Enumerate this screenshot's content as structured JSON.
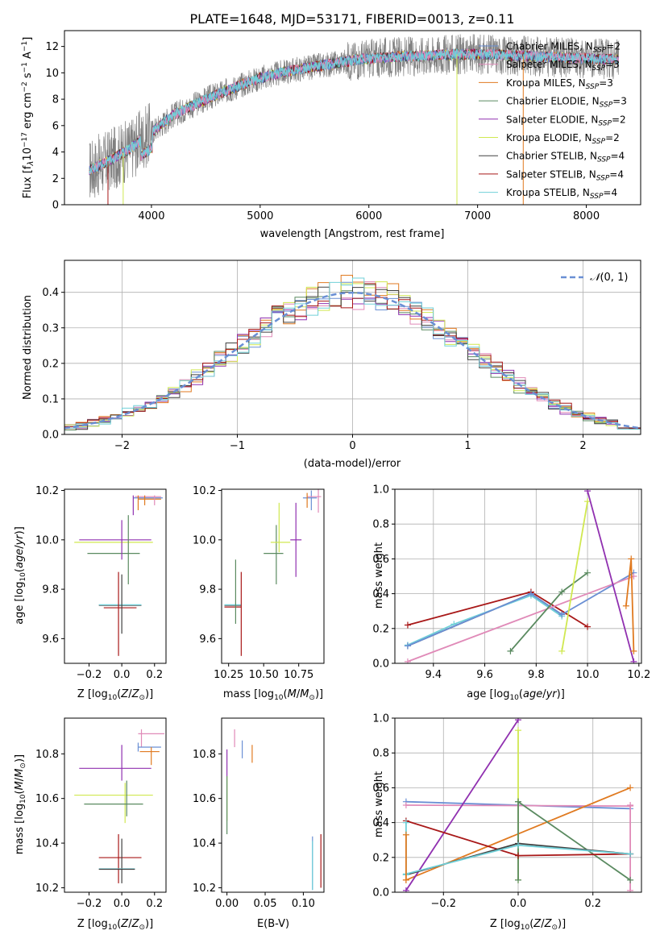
{
  "colors": {
    "chabrier_miles": "#6a8fd4",
    "salpeter_miles": "#e08ab8",
    "kroupa_miles": "#e07a20",
    "chabrier_elodie": "#5a8a60",
    "salpeter_elodie": "#9030b0",
    "kroupa_elodie": "#d0e850",
    "chabrier_stelib": "#404040",
    "salpeter_stelib": "#a81818",
    "kroupa_stelib": "#70d0d8",
    "observed": "#808080"
  },
  "chart_data": [
    {
      "id": "spectrum",
      "type": "line",
      "title": "PLATE=1648, MJD=53171, FIBERID=0013, z=0.11",
      "xlabel": "wavelength [Angstrom, rest frame]",
      "ylabel": "Flux [f_λ 10^-17 erg cm^-2 s^-1 A^-1]",
      "xlim": [
        3200,
        8500
      ],
      "ylim": [
        0,
        13.2
      ],
      "xticks": [
        4000,
        5000,
        6000,
        7000,
        8000
      ],
      "yticks": [
        0,
        2,
        4,
        6,
        8,
        10,
        12
      ],
      "legend": "right",
      "legend_entries": [
        {
          "base": "Chabrier MILES, N",
          "sub": "SSP",
          "tail": "=2",
          "color_key": "chabrier_miles"
        },
        {
          "base": "Salpeter MILES, N",
          "sub": "SSP",
          "tail": "=3",
          "color_key": "salpeter_miles"
        },
        {
          "base": "Kroupa MILES, N",
          "sub": "SSP",
          "tail": "=3",
          "color_key": "kroupa_miles"
        },
        {
          "base": "Chabrier ELODIE, N",
          "sub": "SSP",
          "tail": "=3",
          "color_key": "chabrier_elodie"
        },
        {
          "base": "Salpeter ELODIE, N",
          "sub": "SSP",
          "tail": "=2",
          "color_key": "salpeter_elodie"
        },
        {
          "base": "Kroupa ELODIE, N",
          "sub": "SSP",
          "tail": "=2",
          "color_key": "kroupa_elodie"
        },
        {
          "base": "Chabrier STELIB, N",
          "sub": "SSP",
          "tail": "=4",
          "color_key": "chabrier_stelib"
        },
        {
          "base": "Salpeter STELIB, N",
          "sub": "SSP",
          "tail": "=4",
          "color_key": "salpeter_stelib"
        },
        {
          "base": "Kroupa STELIB, N",
          "sub": "SSP",
          "tail": "=4",
          "color_key": "kroupa_stelib"
        }
      ],
      "continuum": {
        "x": [
          3400,
          3600,
          3800,
          4000,
          4200,
          4500,
          4800,
          5000,
          5300,
          5600,
          5900,
          6200,
          6500,
          6800,
          7100,
          7400,
          7700,
          8000,
          8300
        ],
        "y": [
          2.5,
          3.3,
          4.2,
          5.5,
          6.8,
          8.0,
          9.0,
          9.6,
          10.2,
          10.6,
          11.0,
          11.2,
          11.3,
          11.4,
          11.4,
          11.3,
          11.2,
          11.1,
          11.0
        ]
      },
      "x_range": [
        3430,
        8300
      ]
    },
    {
      "id": "residuals",
      "type": "histogram",
      "xlabel": "(data-model)/error",
      "ylabel": "Normed distribution",
      "xlim": [
        -2.5,
        2.5
      ],
      "ylim": [
        0,
        0.49
      ],
      "xticks": [
        -2,
        -1,
        0,
        1,
        2
      ],
      "yticks": [
        0.0,
        0.1,
        0.2,
        0.3,
        0.4
      ],
      "grid": true,
      "legend": "top-right",
      "legend_label": "N(0,1)",
      "bin_width": 0.1
    },
    {
      "id": "age_vs_Z",
      "type": "errorbar",
      "xlabel": "Z [log10(Z/Zsun)]",
      "ylabel": "age [log10(age/yr)]",
      "xlim": [
        -0.35,
        0.27
      ],
      "ylim": [
        9.5,
        10.205
      ],
      "xticks": [
        -0.2,
        0.0,
        0.2
      ],
      "yticks": [
        9.6,
        9.8,
        10.0,
        10.2
      ],
      "points": [
        {
          "model": "salpeter_elodie",
          "x": -0.04,
          "xerr": 0.22,
          "y": 10.0,
          "yerr": 0.0
        },
        {
          "model": "kroupa_elodie",
          "x": -0.05,
          "xerr": 0.24,
          "y": 9.99,
          "yerr": 0.0
        },
        {
          "model": "chabrier_elodie",
          "x": -0.05,
          "xerr": 0.16,
          "y": 9.945,
          "yerr": 0.0
        },
        {
          "model": "chabrier_elodie",
          "x": 0.04,
          "xerr": 0.0,
          "y": 9.96,
          "yerr": 0.14
        },
        {
          "model": "salpeter_elodie",
          "x": 0.0,
          "xerr": 0.0,
          "y": 10.0,
          "yerr": 0.08
        },
        {
          "model": "chabrier_stelib",
          "x": -0.01,
          "xerr": 0.13,
          "y": 9.735,
          "yerr": 0.0
        },
        {
          "model": "kroupa_stelib",
          "x": -0.01,
          "xerr": 0.13,
          "y": 9.737,
          "yerr": 0.0
        },
        {
          "model": "salpeter_stelib",
          "x": -0.01,
          "xerr": 0.1,
          "y": 9.725,
          "yerr": 0.0
        },
        {
          "model": "salpeter_stelib",
          "x": -0.02,
          "xerr": 0.0,
          "y": 9.7,
          "yerr": 0.17
        },
        {
          "model": "chabrier_stelib",
          "x": 0.0,
          "xerr": 0.0,
          "y": 9.74,
          "yerr": 0.12
        },
        {
          "model": "chabrier_miles",
          "x": 0.16,
          "xerr": 0.09,
          "y": 10.17,
          "yerr": 0.0
        },
        {
          "model": "salpeter_miles",
          "x": 0.16,
          "xerr": 0.08,
          "y": 10.175,
          "yerr": 0.0
        },
        {
          "model": "kroupa_miles",
          "x": 0.17,
          "xerr": 0.07,
          "y": 10.165,
          "yerr": 0.0
        },
        {
          "model": "kroupa_miles",
          "x": 0.1,
          "xerr": 0.0,
          "y": 10.15,
          "yerr": 0.03
        },
        {
          "model": "salpeter_elodie",
          "x": 0.07,
          "xerr": 0.0,
          "y": 10.14,
          "yerr": 0.04
        },
        {
          "model": "kroupa_miles",
          "x": 0.14,
          "xerr": 0.0,
          "y": 10.16,
          "yerr": 0.02
        },
        {
          "model": "salpeter_miles",
          "x": 0.2,
          "xerr": 0.0,
          "y": 10.16,
          "yerr": 0.02
        }
      ]
    },
    {
      "id": "age_vs_mass",
      "type": "errorbar",
      "xlabel": "mass [log10(M/Msun)]",
      "ylabel": "",
      "xlim": [
        10.2,
        10.93
      ],
      "ylim": [
        9.5,
        10.205
      ],
      "xticks": [
        10.25,
        10.5,
        10.75
      ],
      "xtick_labels": [
        "10.25",
        "10.50",
        "10.75"
      ],
      "yticks": [
        9.6,
        9.8,
        10.0,
        10.2
      ],
      "points": [
        {
          "model": "chabrier_stelib",
          "x": 10.28,
          "xerr": 0.06,
          "y": 9.735,
          "yerr": 0.0
        },
        {
          "model": "kroupa_stelib",
          "x": 10.28,
          "xerr": 0.06,
          "y": 9.737,
          "yerr": 0.0
        },
        {
          "model": "salpeter_stelib",
          "x": 10.28,
          "xerr": 0.06,
          "y": 9.728,
          "yerr": 0.0
        },
        {
          "model": "chabrier_elodie",
          "x": 10.3,
          "xerr": 0.0,
          "y": 9.79,
          "yerr": 0.13
        },
        {
          "model": "salpeter_stelib",
          "x": 10.34,
          "xerr": 0.0,
          "y": 9.7,
          "yerr": 0.17
        },
        {
          "model": "chabrier_elodie",
          "x": 10.57,
          "xerr": 0.07,
          "y": 9.945,
          "yerr": 0.0
        },
        {
          "model": "chabrier_elodie",
          "x": 10.59,
          "xerr": 0.0,
          "y": 9.94,
          "yerr": 0.12
        },
        {
          "model": "kroupa_elodie",
          "x": 10.62,
          "xerr": 0.07,
          "y": 9.99,
          "yerr": 0.0
        },
        {
          "model": "kroupa_elodie",
          "x": 10.61,
          "xerr": 0.0,
          "y": 10.05,
          "yerr": 0.1
        },
        {
          "model": "salpeter_elodie",
          "x": 10.73,
          "xerr": 0.04,
          "y": 10.0,
          "yerr": 0.0
        },
        {
          "model": "salpeter_elodie",
          "x": 10.73,
          "xerr": 0.0,
          "y": 10.0,
          "yerr": 0.15
        },
        {
          "model": "chabrier_miles",
          "x": 10.83,
          "xerr": 0.05,
          "y": 10.17,
          "yerr": 0.0
        },
        {
          "model": "chabrier_miles",
          "x": 10.84,
          "xerr": 0.0,
          "y": 10.16,
          "yerr": 0.04
        },
        {
          "model": "salpeter_miles",
          "x": 10.86,
          "xerr": 0.05,
          "y": 10.175,
          "yerr": 0.0
        },
        {
          "model": "salpeter_miles",
          "x": 10.89,
          "xerr": 0.0,
          "y": 10.16,
          "yerr": 0.05
        },
        {
          "model": "kroupa_miles",
          "x": 10.81,
          "xerr": 0.0,
          "y": 10.16,
          "yerr": 0.03
        }
      ]
    },
    {
      "id": "weight_vs_age",
      "type": "line",
      "xlabel": "age [log10(age/yr)]",
      "ylabel": "mass weight",
      "xlim": [
        9.25,
        10.21
      ],
      "ylim": [
        0.0,
        1.0
      ],
      "xticks": [
        9.4,
        9.6,
        9.8,
        10.0,
        10.2
      ],
      "yticks": [
        0.0,
        0.2,
        0.4,
        0.6,
        0.8,
        1.0
      ],
      "grid": true,
      "series": [
        {
          "model": "salpeter_stelib",
          "x": [
            9.3,
            9.78,
            10.0
          ],
          "y": [
            0.22,
            0.41,
            0.21
          ]
        },
        {
          "model": "chabrier_stelib",
          "x": [
            9.3,
            9.78,
            9.9
          ],
          "y": [
            0.1,
            0.4,
            0.28
          ]
        },
        {
          "model": "kroupa_stelib",
          "x": [
            9.3,
            9.48,
            9.78,
            9.9
          ],
          "y": [
            0.105,
            0.225,
            0.39,
            0.27
          ]
        },
        {
          "model": "chabrier_miles",
          "x": [
            9.3,
            9.78,
            9.9,
            10.18
          ],
          "y": [
            0.1,
            0.4,
            0.28,
            0.52
          ]
        },
        {
          "model": "salpeter_miles",
          "x": [
            9.3,
            10.18
          ],
          "y": [
            0.01,
            0.5
          ]
        },
        {
          "model": "chabrier_elodie",
          "x": [
            9.7,
            9.9,
            10.0
          ],
          "y": [
            0.07,
            0.41,
            0.52
          ]
        },
        {
          "model": "kroupa_elodie",
          "x": [
            9.9,
            10.0
          ],
          "y": [
            0.07,
            0.93
          ]
        },
        {
          "model": "salpeter_elodie",
          "x": [
            10.0,
            10.18
          ],
          "y": [
            0.99,
            0.01
          ]
        },
        {
          "model": "kroupa_miles",
          "x": [
            10.15,
            10.17,
            10.18
          ],
          "y": [
            0.33,
            0.6,
            0.07
          ]
        }
      ]
    },
    {
      "id": "mass_vs_Z",
      "type": "errorbar",
      "xlabel": "Z [log10(Z/Zsun)]",
      "ylabel": "mass [log10(M/Msun)]",
      "xlim": [
        -0.35,
        0.27
      ],
      "ylim": [
        10.18,
        10.96
      ],
      "xticks": [
        -0.2,
        0.0,
        0.2
      ],
      "yticks": [
        10.2,
        10.4,
        10.6,
        10.8
      ],
      "points": [
        {
          "model": "salpeter_miles",
          "x": 0.18,
          "xerr": 0.08,
          "y": 10.89,
          "yerr": 0.0
        },
        {
          "model": "salpeter_miles",
          "x": 0.12,
          "xerr": 0.0,
          "y": 10.87,
          "yerr": 0.04
        },
        {
          "model": "chabrier_miles",
          "x": 0.17,
          "xerr": 0.07,
          "y": 10.83,
          "yerr": 0.0
        },
        {
          "model": "chabrier_miles",
          "x": 0.1,
          "xerr": 0.0,
          "y": 10.83,
          "yerr": 0.02
        },
        {
          "model": "kroupa_miles",
          "x": 0.17,
          "xerr": 0.06,
          "y": 10.81,
          "yerr": 0.0
        },
        {
          "model": "kroupa_miles",
          "x": 0.18,
          "xerr": 0.0,
          "y": 10.79,
          "yerr": 0.04
        },
        {
          "model": "salpeter_elodie",
          "x": -0.04,
          "xerr": 0.22,
          "y": 10.735,
          "yerr": 0.0
        },
        {
          "model": "salpeter_elodie",
          "x": 0.0,
          "xerr": 0.0,
          "y": 10.76,
          "yerr": 0.08
        },
        {
          "model": "kroupa_elodie",
          "x": -0.05,
          "xerr": 0.24,
          "y": 10.615,
          "yerr": 0.0
        },
        {
          "model": "kroupa_elodie",
          "x": 0.02,
          "xerr": 0.0,
          "y": 10.58,
          "yerr": 0.09
        },
        {
          "model": "chabrier_elodie",
          "x": -0.05,
          "xerr": 0.18,
          "y": 10.575,
          "yerr": 0.0
        },
        {
          "model": "chabrier_elodie",
          "x": 0.03,
          "xerr": 0.0,
          "y": 10.6,
          "yerr": 0.08
        },
        {
          "model": "salpeter_stelib",
          "x": -0.01,
          "xerr": 0.13,
          "y": 10.335,
          "yerr": 0.0
        },
        {
          "model": "salpeter_stelib",
          "x": -0.02,
          "xerr": 0.0,
          "y": 10.33,
          "yerr": 0.11
        },
        {
          "model": "chabrier_stelib",
          "x": 0.0,
          "xerr": 0.0,
          "y": 10.32,
          "yerr": 0.1
        },
        {
          "model": "kroupa_stelib",
          "x": -0.03,
          "xerr": 0.11,
          "y": 10.285,
          "yerr": 0.0
        },
        {
          "model": "chabrier_stelib",
          "x": -0.03,
          "xerr": 0.11,
          "y": 10.283,
          "yerr": 0.0
        }
      ]
    },
    {
      "id": "mass_vs_ebv",
      "type": "errorbar",
      "xlabel": "E(B-V)",
      "ylabel": "",
      "xlim": [
        -0.007,
        0.127
      ],
      "ylim": [
        10.18,
        10.96
      ],
      "xticks": [
        0.0,
        0.05,
        0.1
      ],
      "xtick_labels": [
        "0.00",
        "0.05",
        "0.10"
      ],
      "yticks": [
        10.2,
        10.4,
        10.6,
        10.8
      ],
      "points": [
        {
          "model": "salpeter_miles",
          "x": 0.01,
          "xerr": 0.0,
          "y": 10.87,
          "yerr": 0.04
        },
        {
          "model": "chabrier_miles",
          "x": 0.02,
          "xerr": 0.0,
          "y": 10.82,
          "yerr": 0.04
        },
        {
          "model": "kroupa_miles",
          "x": 0.033,
          "xerr": 0.0,
          "y": 10.8,
          "yerr": 0.04
        },
        {
          "model": "salpeter_elodie",
          "x": 0.0,
          "xerr": 0.0,
          "y": 10.76,
          "yerr": 0.06
        },
        {
          "model": "kroupa_elodie",
          "x": 0.0,
          "xerr": 0.0,
          "y": 10.6,
          "yerr": 0.1
        },
        {
          "model": "chabrier_elodie",
          "x": 0.0,
          "xerr": 0.0,
          "y": 10.57,
          "yerr": 0.13
        },
        {
          "model": "chabrier_miles",
          "x": 0.112,
          "xerr": 0.0,
          "y": 10.31,
          "yerr": 0.12
        },
        {
          "model": "kroupa_stelib",
          "x": 0.112,
          "xerr": 0.0,
          "y": 10.3,
          "yerr": 0.11
        },
        {
          "model": "salpeter_stelib",
          "x": 0.123,
          "xerr": 0.0,
          "y": 10.32,
          "yerr": 0.12
        }
      ]
    },
    {
      "id": "weight_vs_Z",
      "type": "line",
      "xlabel": "Z [log10(Z/Zsun)]",
      "ylabel": "mass weight",
      "xlim": [
        -0.33,
        0.33
      ],
      "ylim": [
        0.0,
        1.0
      ],
      "xticks": [
        -0.2,
        0.0,
        0.2
      ],
      "yticks": [
        0.0,
        0.2,
        0.4,
        0.6,
        0.8,
        1.0
      ],
      "grid": true,
      "series": [
        {
          "model": "chabrier_miles",
          "x": [
            -0.3,
            0.3
          ],
          "y": [
            0.52,
            0.48
          ]
        },
        {
          "model": "salpeter_miles",
          "x": [
            -0.3,
            0.3
          ],
          "y": [
            0.5,
            0.495
          ]
        },
        {
          "model": "salpeter_miles",
          "x": [
            0.3,
            0.3
          ],
          "y": [
            0.5,
            0.01
          ]
        },
        {
          "model": "kroupa_miles",
          "x": [
            -0.3,
            0.3
          ],
          "y": [
            0.07,
            0.6
          ]
        },
        {
          "model": "salpeter_elodie",
          "x": [
            -0.3,
            0.0
          ],
          "y": [
            0.01,
            0.99
          ]
        },
        {
          "model": "kroupa_elodie",
          "x": [
            0.0,
            0.0
          ],
          "y": [
            0.07,
            0.93
          ]
        },
        {
          "model": "chabrier_elodie",
          "x": [
            0.0,
            0.3
          ],
          "y": [
            0.52,
            0.07
          ]
        },
        {
          "model": "chabrier_elodie",
          "x": [
            0.0,
            0.0
          ],
          "y": [
            0.07,
            0.52
          ]
        },
        {
          "model": "salpeter_stelib",
          "x": [
            -0.3,
            0.0,
            0.3
          ],
          "y": [
            0.41,
            0.21,
            0.22
          ]
        },
        {
          "model": "chabrier_stelib",
          "x": [
            -0.3,
            0.0,
            0.3
          ],
          "y": [
            0.1,
            0.28,
            0.22
          ]
        },
        {
          "model": "kroupa_stelib",
          "x": [
            -0.3,
            0.0,
            0.3
          ],
          "y": [
            0.105,
            0.27,
            0.22
          ]
        },
        {
          "model": "kroupa_stelib",
          "x": [
            -0.3,
            -0.3
          ],
          "y": [
            0.1,
            0.4
          ]
        },
        {
          "model": "kroupa_miles",
          "x": [
            -0.3,
            -0.3
          ],
          "y": [
            0.07,
            0.33
          ]
        }
      ]
    }
  ]
}
